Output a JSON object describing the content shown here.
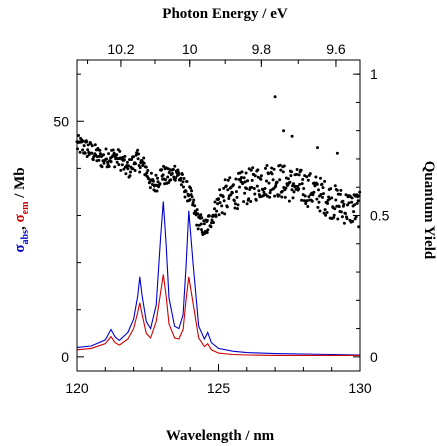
{
  "chart_data": {
    "type": "line",
    "title": "",
    "x_top_label": "Photon Energy / eV",
    "x_top_ticks": [
      "10.2",
      "10",
      "9.8",
      "9.6"
    ],
    "x_top_tick_values_eV": [
      10.2,
      10.0,
      9.8,
      9.6
    ],
    "xlabel": "Wavelength / nm",
    "x_ticks": [
      "120",
      "125",
      "130"
    ],
    "xlim": [
      120,
      130
    ],
    "ylabel_left": {
      "sigma": "σ",
      "abs": "abs",
      "sep": ", ",
      "em": "em",
      "unit": " / Mb"
    },
    "ylabel_left_colors": {
      "abs": "#0000cc",
      "em": "#cc0000",
      "unit": "#000000"
    },
    "y_left_ticks": [
      "0",
      "50"
    ],
    "ylim_left": [
      -3,
      63
    ],
    "ylabel_right": "Quantum Yield",
    "y_right_ticks": [
      "0",
      "0.5",
      "1"
    ],
    "ylim_right": [
      -0.05,
      1.05
    ],
    "grid": false,
    "series": [
      {
        "key": "abs",
        "axis": "left",
        "color": "#0000cc",
        "style": "line",
        "x": [
          120.0,
          120.5,
          121.0,
          121.2,
          121.35,
          121.5,
          121.8,
          122.0,
          122.15,
          122.22,
          122.3,
          122.45,
          122.6,
          122.8,
          122.95,
          123.05,
          123.15,
          123.25,
          123.45,
          123.6,
          123.75,
          123.85,
          123.95,
          124.1,
          124.3,
          124.5,
          124.62,
          124.75,
          125.0,
          125.5,
          126.0,
          127.0,
          128.0,
          129.0,
          130.0
        ],
        "y": [
          2.0,
          2.3,
          3.6,
          5.8,
          4.2,
          3.5,
          5.2,
          8.0,
          13.0,
          17.0,
          13.0,
          7.5,
          6.0,
          11.0,
          25.0,
          33.0,
          24.0,
          12.5,
          6.5,
          6.0,
          9.0,
          19.0,
          31.0,
          20.0,
          6.5,
          3.8,
          5.2,
          3.0,
          1.8,
          1.2,
          0.9,
          0.7,
          0.6,
          0.5,
          0.4
        ]
      },
      {
        "key": "em",
        "axis": "left",
        "color": "#cc0000",
        "style": "line",
        "x": [
          120.0,
          120.5,
          121.0,
          121.2,
          121.35,
          121.5,
          121.8,
          122.0,
          122.15,
          122.22,
          122.3,
          122.45,
          122.6,
          122.8,
          122.95,
          123.05,
          123.15,
          123.25,
          123.45,
          123.6,
          123.75,
          123.85,
          123.95,
          124.1,
          124.3,
          124.5,
          124.62,
          124.75,
          125.0,
          125.5,
          126.0,
          127.0,
          128.0,
          129.0,
          130.0
        ],
        "y": [
          1.5,
          1.8,
          2.8,
          4.3,
          3.0,
          2.5,
          3.8,
          6.0,
          9.5,
          11.5,
          9.0,
          5.0,
          4.0,
          7.5,
          13.5,
          17.5,
          13.0,
          7.0,
          4.0,
          3.8,
          5.8,
          12.0,
          17.0,
          11.5,
          4.0,
          2.2,
          2.8,
          1.5,
          0.8,
          0.5,
          0.4,
          0.3,
          0.3,
          0.3,
          0.3
        ]
      },
      {
        "key": "quantum_yield",
        "axis": "right",
        "color": "#000000",
        "style": "points",
        "trend_x": [
          120.0,
          120.3,
          120.6,
          120.9,
          121.2,
          121.5,
          121.8,
          122.1,
          122.4,
          122.7,
          123.0,
          123.2,
          123.5,
          123.8,
          124.0,
          124.2,
          124.5,
          124.8,
          125.0,
          125.5,
          126.0,
          126.5,
          127.0,
          127.5,
          128.0,
          128.5,
          129.0,
          129.5,
          130.0
        ],
        "trend_y": [
          0.75,
          0.74,
          0.72,
          0.7,
          0.71,
          0.7,
          0.66,
          0.7,
          0.67,
          0.6,
          0.65,
          0.63,
          0.66,
          0.6,
          0.57,
          0.5,
          0.45,
          0.5,
          0.55,
          0.58,
          0.6,
          0.62,
          0.63,
          0.61,
          0.6,
          0.58,
          0.55,
          0.53,
          0.52
        ],
        "scatter": 0.035,
        "outliers": [
          [
            127.0,
            0.92
          ],
          [
            127.3,
            0.8
          ],
          [
            127.6,
            0.78
          ],
          [
            128.5,
            0.74
          ],
          [
            129.2,
            0.72
          ],
          [
            124.6,
            0.44
          ],
          [
            124.4,
            0.45
          ]
        ]
      }
    ]
  }
}
